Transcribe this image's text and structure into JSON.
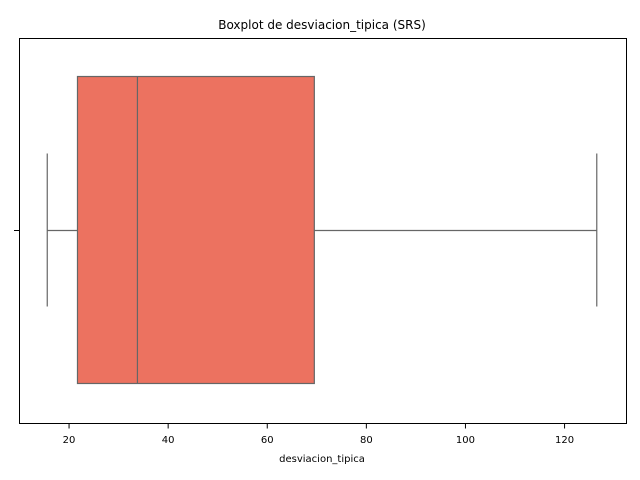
{
  "chart_data": {
    "type": "boxplot",
    "title": "Boxplot de desviacion_tipica (SRS)",
    "xlabel": "desviacion_tipica",
    "ylabel": "",
    "xlim": [
      10,
      132.5
    ],
    "xticks": [
      20,
      40,
      60,
      80,
      100,
      120
    ],
    "xtick_labels": [
      "20",
      "40",
      "60",
      "80",
      "100",
      "120"
    ],
    "orientation": "horizontal",
    "grid": false,
    "box": {
      "whisker_low": 15.6,
      "q1": 21.7,
      "median": 33.8,
      "q3": 69.5,
      "whisker_high": 126.5
    },
    "colors": {
      "box_fill": "#ec7260",
      "lines": "#666666"
    }
  }
}
